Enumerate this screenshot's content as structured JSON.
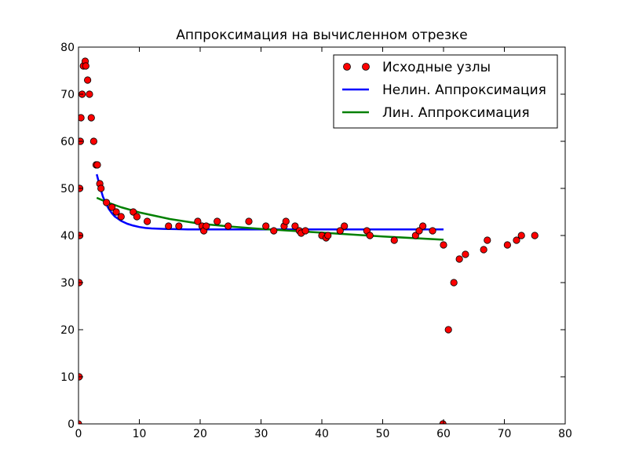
{
  "chart_data": {
    "type": "line",
    "title": "Аппроксимация на вычисленном отрезке",
    "xlabel": "",
    "ylabel": "",
    "xlim": [
      0,
      80
    ],
    "ylim": [
      0,
      80
    ],
    "x_ticks": [
      "0",
      "10",
      "20",
      "30",
      "40",
      "50",
      "60",
      "70",
      "80"
    ],
    "y_ticks": [
      "0",
      "10",
      "20",
      "30",
      "40",
      "50",
      "60",
      "70",
      "80"
    ],
    "grid": false,
    "legend_position": "top-right",
    "series": [
      {
        "name": "Исходные узлы",
        "kind": "scatter",
        "color": "#ff0000",
        "points": [
          [
            0,
            0
          ],
          [
            0.1,
            10
          ],
          [
            0.1,
            30
          ],
          [
            0.2,
            40
          ],
          [
            0.2,
            50
          ],
          [
            0.3,
            60
          ],
          [
            0.4,
            65
          ],
          [
            0.6,
            70
          ],
          [
            0.8,
            76
          ],
          [
            1.1,
            77
          ],
          [
            1.2,
            76
          ],
          [
            1.5,
            73
          ],
          [
            1.8,
            70
          ],
          [
            2.1,
            65
          ],
          [
            2.5,
            60
          ],
          [
            2.9,
            55
          ],
          [
            3.1,
            55
          ],
          [
            3.5,
            51
          ],
          [
            3.7,
            50
          ],
          [
            4.6,
            47
          ],
          [
            5.5,
            46
          ],
          [
            6.2,
            45
          ],
          [
            7.0,
            44
          ],
          [
            9.0,
            45
          ],
          [
            9.6,
            44
          ],
          [
            11.3,
            43
          ],
          [
            14.8,
            42
          ],
          [
            16.5,
            42
          ],
          [
            19.6,
            43
          ],
          [
            20.3,
            42
          ],
          [
            20.6,
            41
          ],
          [
            21.0,
            42
          ],
          [
            22.8,
            43
          ],
          [
            24.6,
            42
          ],
          [
            28.0,
            43
          ],
          [
            30.8,
            42
          ],
          [
            32.1,
            41
          ],
          [
            33.8,
            42
          ],
          [
            34.1,
            43
          ],
          [
            35.6,
            42
          ],
          [
            36.3,
            41
          ],
          [
            36.6,
            40.5
          ],
          [
            37.3,
            41
          ],
          [
            40.0,
            40
          ],
          [
            40.7,
            39.5
          ],
          [
            41.0,
            40
          ],
          [
            43.0,
            41
          ],
          [
            43.7,
            42
          ],
          [
            47.4,
            41
          ],
          [
            47.9,
            40
          ],
          [
            51.9,
            39
          ],
          [
            55.4,
            40
          ],
          [
            56.0,
            41
          ],
          [
            56.6,
            42
          ],
          [
            58.2,
            41
          ],
          [
            59.9,
            0
          ],
          [
            60.0,
            38
          ],
          [
            60.8,
            20
          ],
          [
            61.7,
            30
          ],
          [
            62.6,
            35
          ],
          [
            63.6,
            36
          ],
          [
            66.6,
            37
          ],
          [
            67.2,
            39
          ],
          [
            70.5,
            38
          ],
          [
            72.0,
            39
          ],
          [
            72.8,
            40
          ],
          [
            75.0,
            40
          ]
        ]
      },
      {
        "name": "Нелин. Аппроксимация",
        "kind": "line",
        "color": "#0000ff",
        "x": [
          3.0,
          3.5,
          4,
          4.5,
          5,
          5.5,
          6,
          7,
          8,
          9,
          10,
          11,
          12,
          14,
          16,
          18,
          20,
          25,
          30,
          40,
          50,
          60
        ],
        "y": [
          53.0,
          50.5,
          48.3,
          46.8,
          45.6,
          44.7,
          44.0,
          43.1,
          42.5,
          42.1,
          41.8,
          41.6,
          41.5,
          41.4,
          41.35,
          41.3,
          41.3,
          41.3,
          41.3,
          41.3,
          41.3,
          41.3
        ]
      },
      {
        "name": "Лин. Аппроксимация",
        "kind": "line",
        "color": "#008000",
        "x": [
          3,
          5,
          7,
          10,
          15,
          20,
          25,
          30,
          40,
          50,
          60
        ],
        "y": [
          48.0,
          46.9,
          46.0,
          44.9,
          43.5,
          42.5,
          41.9,
          41.4,
          40.6,
          39.8,
          39.1
        ]
      }
    ]
  }
}
